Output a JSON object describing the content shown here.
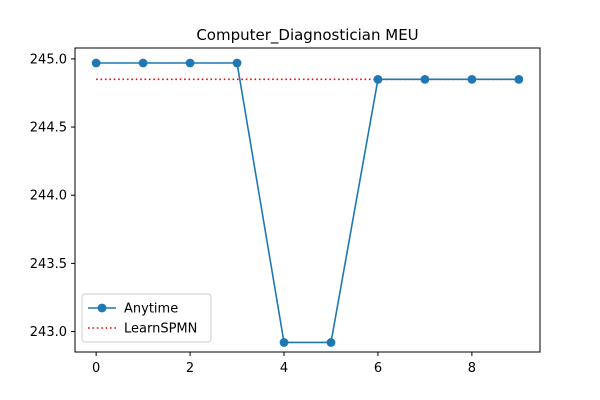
{
  "chart_data": {
    "type": "line",
    "title": "Computer_Diagnostician MEU",
    "xlabel": "",
    "ylabel": "",
    "xlim": [
      -0.45,
      9.45
    ],
    "ylim": [
      242.85,
      245.08
    ],
    "xticks": [
      0,
      2,
      4,
      6,
      8
    ],
    "xtick_labels": [
      "0",
      "2",
      "4",
      "6",
      "8"
    ],
    "yticks": [
      243.0,
      243.5,
      244.0,
      244.5,
      245.0
    ],
    "ytick_labels": [
      "243.0",
      "243.5",
      "244.0",
      "244.5",
      "245.0"
    ],
    "grid": false,
    "legend_position": "lower-left",
    "series": [
      {
        "name": "Anytime",
        "style": "solid-line-with-circle-markers",
        "color": "#1f77b4",
        "x": [
          0,
          1,
          2,
          3,
          4,
          5,
          6,
          7,
          8,
          9
        ],
        "y": [
          244.97,
          244.97,
          244.97,
          244.97,
          242.92,
          242.92,
          244.85,
          244.85,
          244.85,
          244.85
        ]
      },
      {
        "name": "LearnSPMN",
        "style": "dotted-line",
        "color": "#ff0000",
        "x": [
          0,
          9
        ],
        "y": [
          244.85,
          244.85
        ]
      }
    ]
  }
}
